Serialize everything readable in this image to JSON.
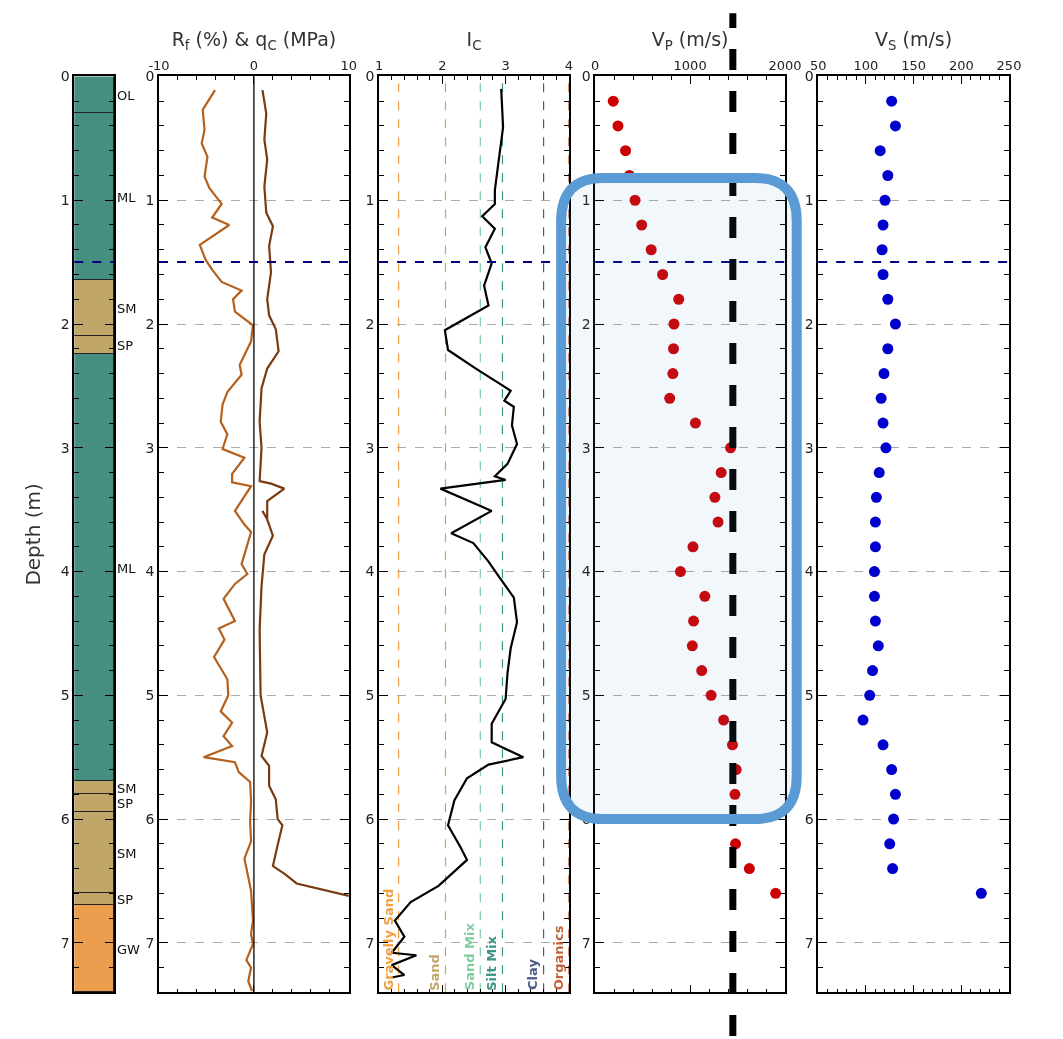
{
  "chart_data": [
    {
      "type": "bar",
      "stacked": true,
      "ylabel": "Depth (m)",
      "categories": [
        null
      ],
      "tick_labels": "y",
      "grid": "y",
      "legend": false,
      "ylim": [
        7.4,
        0
      ],
      "yticks": [
        0,
        1,
        2,
        3,
        4,
        5,
        6,
        7
      ],
      "series": [
        {
          "name": "OL",
          "color": "#468e80",
          "values": [
            0.3
          ]
        },
        {
          "name": "ML",
          "color": "#468e80",
          "values": [
            1.35
          ]
        },
        {
          "name": "SM",
          "color": "#c1a669",
          "values": [
            0.45
          ]
        },
        {
          "name": "SP",
          "color": "#c1a669",
          "values": [
            0.15
          ]
        },
        {
          "name": "ML",
          "color": "#468e80",
          "values": [
            3.45
          ]
        },
        {
          "name": "SM",
          "color": "#c1a669",
          "values": [
            0.1
          ]
        },
        {
          "name": "SP",
          "color": "#c1a669",
          "values": [
            0.15
          ]
        },
        {
          "name": "SM",
          "color": "#c1a669",
          "values": [
            0.65
          ]
        },
        {
          "name": "SP",
          "color": "#c1a669",
          "values": [
            0.1
          ]
        },
        {
          "name": "GW",
          "color": "#eb9c4c",
          "values": [
            0.7
          ]
        }
      ],
      "ref_lines": [
        {
          "axis": "y",
          "value": 1.5,
          "color": "#000080",
          "line_style": "dashed"
        }
      ]
    },
    {
      "type": "line",
      "xlabel": "R$_{f}$ (%) & q$_{C}$ (MPa)",
      "xlim": [
        -10,
        10
      ],
      "xticks": [
        -10,
        0,
        10
      ],
      "ylim": [
        7.4,
        0
      ],
      "yticks": [
        0,
        1,
        2,
        3,
        4,
        5,
        6,
        7
      ],
      "grid": "y",
      "legend": false,
      "series": [
        {
          "color": "#b5601c",
          "x": [
            -4.1,
            -5.4,
            -5.2,
            -5.5,
            -4.9,
            -5.2,
            -4.7,
            -3.4,
            -4.4,
            -2.6,
            -5.7,
            -5.1,
            -4.4,
            -3.4,
            -1.3,
            -2.2,
            -2.0,
            -0.1,
            -0.3,
            -1.5,
            -1.3,
            -2.8,
            -3.3,
            -3.5,
            -2.8,
            -3.3,
            -1.0,
            -2.3,
            -2.3,
            -0.3,
            -2.0,
            -1.0,
            -0.3,
            -1.3,
            -0.7,
            -2.0,
            -3.2,
            -2.0,
            -3.7,
            -3.1,
            -4.2,
            -2.8,
            -2.7,
            -3.5,
            -2.3,
            -3.2,
            -2.3,
            -5.3,
            -2.0,
            -1.6,
            -0.4,
            -0.3,
            -0.4,
            -0.3,
            -1.0,
            -0.3,
            -0.1,
            -0.3,
            -0.1,
            -0.8,
            -0.3,
            -0.6,
            -0.2
          ],
          "values": [
            0.11,
            0.27,
            0.43,
            0.54,
            0.65,
            0.81,
            0.9,
            1.03,
            1.14,
            1.2,
            1.36,
            1.48,
            1.56,
            1.66,
            1.73,
            1.8,
            1.9,
            2.01,
            2.14,
            2.33,
            2.41,
            2.55,
            2.65,
            2.79,
            2.89,
            3.01,
            3.08,
            3.21,
            3.28,
            3.31,
            3.51,
            3.62,
            3.68,
            3.94,
            4.02,
            4.1,
            4.22,
            4.4,
            4.46,
            4.55,
            4.69,
            4.87,
            5.0,
            5.13,
            5.22,
            5.33,
            5.41,
            5.5,
            5.54,
            5.62,
            5.7,
            5.86,
            6.02,
            6.18,
            6.32,
            6.58,
            6.82,
            6.93,
            7.01,
            7.14,
            7.2,
            7.31,
            7.39
          ]
        },
        {
          "color": "#7a3a12",
          "x": [
            0.9,
            1.3,
            1.1,
            1.4,
            1.1,
            1.3,
            2.0,
            1.6,
            1.8,
            1.4,
            1.6,
            2.3,
            2.6,
            1.4,
            0.8,
            0.6,
            0.8,
            0.6,
            1.8,
            3.2,
            1.4,
            1.4,
            0.9,
            1.4,
            2.0,
            1.1,
            0.8,
            0.6,
            0.7,
            1.1,
            1.4,
            0.8,
            1.6,
            1.6,
            2.3,
            2.5,
            3.0,
            2.5,
            2.0,
            3.2,
            4.5,
            10.0
          ],
          "values": [
            0.11,
            0.3,
            0.51,
            0.67,
            0.89,
            1.1,
            1.21,
            1.37,
            1.58,
            1.8,
            1.93,
            2.04,
            2.22,
            2.36,
            2.52,
            2.79,
            3.0,
            3.27,
            3.29,
            3.33,
            3.43,
            3.58,
            3.51,
            3.58,
            3.71,
            3.86,
            4.12,
            4.47,
            5.0,
            5.17,
            5.3,
            5.49,
            5.57,
            5.73,
            5.84,
            6.0,
            6.05,
            6.21,
            6.38,
            6.44,
            6.52,
            6.62
          ]
        }
      ],
      "ref_lines": [
        {
          "axis": "x",
          "value": 0,
          "color": "#000000",
          "line_style": "solid"
        },
        {
          "axis": "y",
          "value": 1.5,
          "color": "#000080",
          "line_style": "dashed"
        }
      ]
    },
    {
      "type": "line",
      "xlabel": "I$_{C}$",
      "xlim": [
        1,
        4
      ],
      "xticks": [
        1,
        2,
        3,
        4
      ],
      "ylim": [
        7.4,
        0
      ],
      "yticks": [
        0,
        1,
        2,
        3,
        4,
        5,
        6,
        7
      ],
      "grid": "y",
      "legend": false,
      "series": [
        {
          "color": "#000000",
          "x": [
            2.93,
            2.96,
            2.88,
            2.83,
            2.83,
            2.63,
            2.83,
            2.68,
            2.78,
            2.66,
            2.73,
            2.04,
            2.09,
            2.53,
            2.93,
            3.08,
            2.98,
            3.13,
            3.1,
            3.18,
            3.03,
            2.83,
            3.0,
            1.97,
            2.78,
            2.14,
            2.49,
            2.73,
            2.88,
            3.13,
            3.18,
            3.08,
            3.03,
            3.0,
            2.78,
            2.78,
            3.28,
            2.73,
            2.39,
            2.19,
            2.09,
            2.29,
            2.39,
            1.94,
            1.5,
            1.25,
            1.4,
            1.2,
            1.59,
            1.2,
            1.4,
            1.2
          ],
          "values": [
            0.1,
            0.41,
            0.72,
            0.92,
            1.03,
            1.13,
            1.23,
            1.38,
            1.51,
            1.69,
            1.85,
            2.05,
            2.21,
            2.36,
            2.49,
            2.54,
            2.62,
            2.67,
            2.82,
            2.97,
            3.13,
            3.23,
            3.26,
            3.33,
            3.51,
            3.69,
            3.77,
            3.92,
            4.03,
            4.21,
            4.41,
            4.62,
            4.82,
            5.03,
            5.23,
            5.38,
            5.5,
            5.56,
            5.67,
            5.85,
            6.05,
            6.23,
            6.33,
            6.54,
            6.67,
            6.82,
            6.95,
            7.08,
            7.1,
            7.18,
            7.26,
            7.28
          ]
        }
      ],
      "ref_lines": [
        {
          "axis": "x",
          "value": 1.31,
          "label": "Gravelly Sand",
          "color": "#f0a040",
          "line_style": "dashed"
        },
        {
          "axis": "x",
          "value": 2.05,
          "label": "Sand",
          "color": "#c1a669",
          "line_style": "dashed"
        },
        {
          "axis": "x",
          "value": 2.6,
          "label": "Sand Mix",
          "color": "#7fcc9f",
          "line_style": "dashed"
        },
        {
          "axis": "x",
          "value": 2.95,
          "label": "Silt Mix",
          "color": "#3a9585",
          "line_style": "dashed"
        },
        {
          "axis": "x",
          "value": 3.6,
          "label": "Clay",
          "color": "#4a5a88",
          "line_style": "dashed"
        },
        {
          "axis": "x",
          "value": 4,
          "label": "Organics",
          "color": "#c0643a",
          "line_style": "dashed"
        },
        {
          "axis": "y",
          "value": 1.5,
          "color": "#000080",
          "line_style": "dashed"
        }
      ]
    },
    {
      "type": "scatter",
      "xlabel": "V$_{P}$ (m/s)",
      "marker": "circle",
      "xlim": [
        0,
        2000
      ],
      "xticks": [
        0,
        1000,
        2000
      ],
      "ylim": [
        7.4,
        0
      ],
      "yticks": [
        0,
        1,
        2,
        3,
        4,
        5,
        6,
        7
      ],
      "grid": "y",
      "legend": false,
      "series": [
        {
          "color": "#cc0000",
          "x": [
            190,
            240,
            320,
            360,
            420,
            490,
            590,
            710,
            880,
            830,
            825,
            818,
            785,
            1056,
            1426,
            1327,
            1261,
            1294,
            1030,
            898,
            1155,
            1036,
            1023,
            1122,
            1221,
            1353,
            1446,
            1485,
            1472,
            1478,
            1624,
            1901
          ],
          "values": [
            0.2,
            0.4,
            0.6,
            0.8,
            1.0,
            1.2,
            1.4,
            1.6,
            1.8,
            2.0,
            2.2,
            2.4,
            2.6,
            2.8,
            3.0,
            3.2,
            3.4,
            3.6,
            3.8,
            4.0,
            4.2,
            4.4,
            4.6,
            4.8,
            5.0,
            5.2,
            5.4,
            5.6,
            5.8,
            6.2,
            6.4,
            6.6
          ]
        }
      ],
      "ref_lines": [
        {
          "axis": "x",
          "value": 1450,
          "color": "#000000",
          "line_style": "dashed"
        },
        {
          "axis": "y",
          "value": 1.5,
          "color": "#000080",
          "line_style": "dashed"
        }
      ],
      "bands": [
        {
          "axis": "y",
          "from": 0.82,
          "to": 6.0,
          "color": "#5b9bd5"
        }
      ]
    },
    {
      "type": "scatter",
      "xlabel": "V$_{S}$ (m/s)",
      "marker": "circle",
      "xlim": [
        50,
        250
      ],
      "xticks": [
        50,
        100,
        150,
        200,
        250
      ],
      "ylim": [
        7.4,
        0
      ],
      "yticks": [
        0,
        1,
        2,
        3,
        4,
        5,
        6,
        7
      ],
      "grid": "y",
      "legend": false,
      "series": [
        {
          "color": "#0000cc",
          "x": [
            127,
            131,
            115,
            123,
            120,
            118,
            117,
            118,
            123,
            131,
            123,
            119,
            116,
            118,
            121,
            114,
            111,
            110,
            110,
            109,
            109,
            110,
            113,
            107,
            104,
            97,
            118,
            127,
            131,
            129,
            125,
            128,
            221
          ],
          "values": [
            0.2,
            0.4,
            0.6,
            0.8,
            1.0,
            1.2,
            1.4,
            1.6,
            1.8,
            2.0,
            2.2,
            2.4,
            2.6,
            2.8,
            3.0,
            3.2,
            3.4,
            3.6,
            3.8,
            4.0,
            4.2,
            4.4,
            4.6,
            4.8,
            5.0,
            5.2,
            5.4,
            5.6,
            5.8,
            6.0,
            6.2,
            6.4,
            6.6
          ]
        }
      ],
      "ref_lines": [
        {
          "axis": "y",
          "value": 1.5,
          "color": "#000080",
          "line_style": "dashed"
        }
      ]
    }
  ]
}
